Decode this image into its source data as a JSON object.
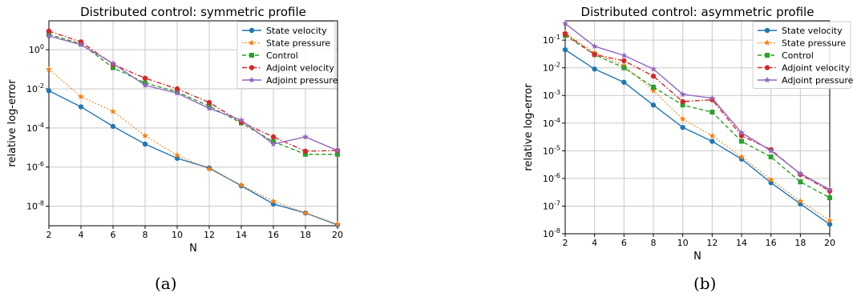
{
  "chart_data": [
    {
      "type": "line",
      "title": "Distributed control: symmetric profile",
      "xlabel": "N",
      "ylabel": "relative log-error",
      "yscale": "log",
      "xlim": [
        2,
        20
      ],
      "ylim": [
        1e-09,
        30
      ],
      "xticks": [
        "2",
        "4",
        "6",
        "8",
        "10",
        "12",
        "14",
        "16",
        "18",
        "20"
      ],
      "yticks": [
        {
          "value": 1,
          "label": "10^0"
        },
        {
          "value": 0.01,
          "label": "10^-2"
        },
        {
          "value": 0.0001,
          "label": "10^-4"
        },
        {
          "value": 1e-06,
          "label": "10^-6"
        },
        {
          "value": 1e-08,
          "label": "10^-8"
        }
      ],
      "grid": true,
      "legend": "top-right",
      "x": [
        2,
        4,
        6,
        8,
        10,
        12,
        14,
        16,
        18,
        20
      ],
      "series": [
        {
          "name": "State velocity",
          "color": "#1f77b4",
          "linestyle": "solid",
          "marker": "circle",
          "values": [
            0.008,
            0.0012,
            0.00012,
            1.5e-05,
            2.8e-06,
            9e-07,
            1.1e-07,
            1.3e-08,
            4.5e-09,
            1.1e-09
          ]
        },
        {
          "name": "State pressure",
          "color": "#ff7f0e",
          "linestyle": "dotted",
          "marker": "star",
          "values": [
            0.1,
            0.004,
            0.0007,
            4e-05,
            4e-06,
            8e-07,
            1.2e-07,
            1.8e-08,
            4.5e-09,
            1.2e-09
          ]
        },
        {
          "name": "Control",
          "color": "#2ca02c",
          "linestyle": "dashed",
          "marker": "square",
          "values": [
            6,
            2,
            0.12,
            0.02,
            0.007,
            0.0013,
            0.00018,
            2e-05,
            4.5e-06,
            4.5e-06
          ]
        },
        {
          "name": "Adjoint velocity",
          "color": "#d62728",
          "linestyle": "dashdot",
          "marker": "circle",
          "values": [
            9,
            2.5,
            0.18,
            0.035,
            0.01,
            0.002,
            0.0002,
            3.5e-05,
            6.5e-06,
            7e-06
          ]
        },
        {
          "name": "Adjoint pressure",
          "color": "#9467bd",
          "linestyle": "solid",
          "marker": "star",
          "values": [
            5,
            1.8,
            0.2,
            0.015,
            0.006,
            0.001,
            0.00025,
            1.5e-05,
            3.5e-05,
            7e-06
          ]
        }
      ]
    },
    {
      "type": "line",
      "title": "Distributed control: asymmetric profile",
      "xlabel": "N",
      "ylabel": "relative log-error",
      "yscale": "log",
      "xlim": [
        2,
        20
      ],
      "ylim": [
        1e-08,
        0.5
      ],
      "xticks": [
        "2",
        "4",
        "6",
        "8",
        "10",
        "12",
        "14",
        "16",
        "18",
        "20"
      ],
      "yticks": [
        {
          "value": 0.1,
          "label": "10^-1"
        },
        {
          "value": 0.01,
          "label": "10^-2"
        },
        {
          "value": 0.001,
          "label": "10^-3"
        },
        {
          "value": 0.0001,
          "label": "10^-4"
        },
        {
          "value": 1e-05,
          "label": "10^-5"
        },
        {
          "value": 1e-06,
          "label": "10^-6"
        },
        {
          "value": 1e-07,
          "label": "10^-7"
        },
        {
          "value": 1e-08,
          "label": "10^-8"
        }
      ],
      "grid": true,
      "legend": "top-right",
      "x": [
        2,
        4,
        6,
        8,
        10,
        12,
        14,
        16,
        18,
        20
      ],
      "series": [
        {
          "name": "State velocity",
          "color": "#1f77b4",
          "linestyle": "solid",
          "marker": "circle",
          "values": [
            0.045,
            0.009,
            0.003,
            0.00045,
            7e-05,
            2.2e-05,
            5e-06,
            7e-07,
            1.2e-07,
            2.2e-08
          ]
        },
        {
          "name": "State pressure",
          "color": "#ff7f0e",
          "linestyle": "dotted",
          "marker": "star",
          "values": [
            0.18,
            0.035,
            0.012,
            0.0015,
            0.00014,
            3.5e-05,
            6e-06,
            9e-07,
            1.5e-07,
            3e-08
          ]
        },
        {
          "name": "Control",
          "color": "#2ca02c",
          "linestyle": "dashed",
          "marker": "square",
          "values": [
            0.15,
            0.03,
            0.01,
            0.002,
            0.00045,
            0.00025,
            2.2e-05,
            6e-06,
            7.5e-07,
            2e-07
          ]
        },
        {
          "name": "Adjoint velocity",
          "color": "#d62728",
          "linestyle": "dashdot",
          "marker": "circle",
          "values": [
            0.17,
            0.03,
            0.018,
            0.005,
            0.0006,
            0.0007,
            3.5e-05,
            1.1e-05,
            1.4e-06,
            3.5e-07
          ]
        },
        {
          "name": "Adjoint pressure",
          "color": "#9467bd",
          "linestyle": "solid",
          "marker": "star",
          "values": [
            0.4,
            0.06,
            0.028,
            0.009,
            0.0011,
            0.0008,
            4.5e-05,
            1e-05,
            1.5e-06,
            4e-07
          ]
        }
      ]
    }
  ],
  "captions": [
    "(a)",
    "(b)"
  ]
}
